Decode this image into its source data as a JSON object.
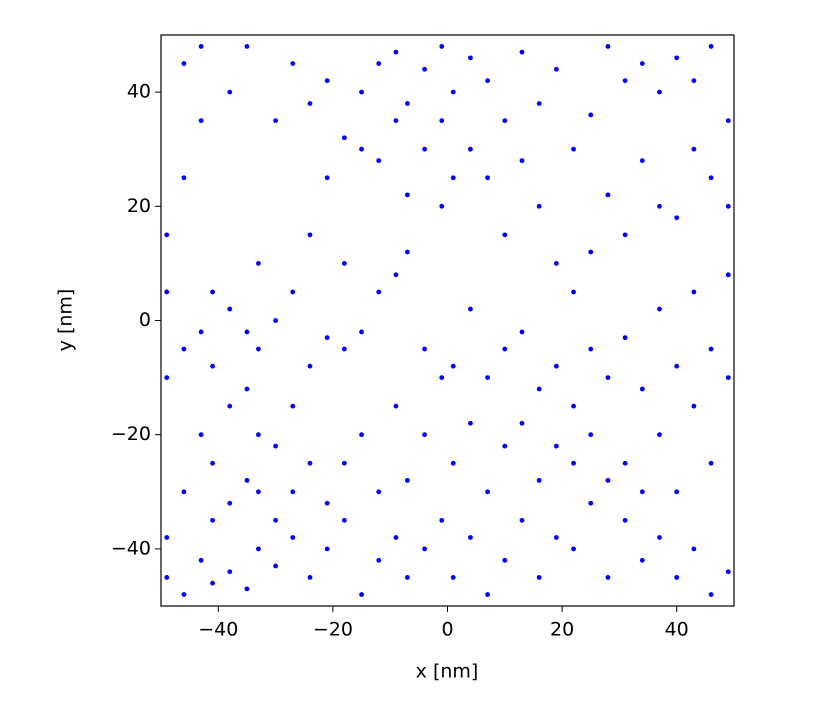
{
  "chart_data": {
    "type": "scatter",
    "xlabel": "x [nm]",
    "ylabel": "y [nm]",
    "xlim": [
      -50,
      50
    ],
    "ylim": [
      -50,
      50
    ],
    "xticks": [
      {
        "value": -40,
        "label": "−40"
      },
      {
        "value": -20,
        "label": "−20"
      },
      0,
      20,
      40
    ],
    "yticks": [
      {
        "value": -40,
        "label": "−40"
      },
      {
        "value": -20,
        "label": "−20"
      },
      0,
      20,
      40
    ],
    "series": [
      {
        "color": "#0000ff",
        "x": [
          -49,
          -49,
          -49,
          -49,
          -49,
          -46,
          -46,
          -46,
          -46,
          -46,
          -43,
          -43,
          -43,
          -43,
          -43,
          -41,
          -41,
          -41,
          -41,
          -41,
          -38,
          -38,
          -38,
          -38,
          -38,
          -35,
          -35,
          -35,
          -35,
          -35,
          -33,
          -33,
          -33,
          -33,
          -33,
          -30,
          -30,
          -30,
          -30,
          -30,
          -27,
          -27,
          -27,
          -27,
          -27,
          -24,
          -24,
          -24,
          -24,
          -24,
          -21,
          -21,
          -21,
          -21,
          -21,
          -18,
          -18,
          -18,
          -18,
          -18,
          -15,
          -15,
          -15,
          -15,
          -15,
          -12,
          -12,
          -12,
          -12,
          -12,
          -9,
          -9,
          -9,
          -9,
          -9,
          -7,
          -7,
          -7,
          -7,
          -7,
          -4,
          -4,
          -4,
          -4,
          -4,
          -1,
          -1,
          -1,
          -1,
          -1,
          1,
          1,
          1,
          1,
          1,
          4,
          4,
          4,
          4,
          4,
          7,
          7,
          7,
          7,
          7,
          10,
          10,
          10,
          10,
          10,
          13,
          13,
          13,
          13,
          13,
          16,
          16,
          16,
          16,
          16,
          19,
          19,
          19,
          19,
          19,
          22,
          22,
          22,
          22,
          22,
          25,
          25,
          25,
          25,
          25,
          28,
          28,
          28,
          28,
          28,
          31,
          31,
          31,
          31,
          31,
          34,
          34,
          34,
          34,
          34,
          37,
          37,
          37,
          37,
          37,
          40,
          40,
          40,
          40,
          40,
          43,
          43,
          43,
          43,
          43,
          46,
          46,
          46,
          46,
          46,
          49,
          49,
          49,
          49,
          49
        ],
        "y": [
          -45,
          -38,
          -10,
          5,
          15,
          -48,
          -30,
          -5,
          25,
          45,
          -42,
          -20,
          -2,
          35,
          48,
          -46,
          -35,
          -25,
          -8,
          5,
          -44,
          -32,
          -15,
          2,
          40,
          -47,
          -28,
          -12,
          -2,
          48,
          -40,
          -30,
          -20,
          -5,
          10,
          -43,
          -35,
          -22,
          0,
          35,
          -38,
          -30,
          -15,
          5,
          45,
          -45,
          -25,
          -8,
          15,
          38,
          -40,
          -32,
          -3,
          25,
          42,
          -35,
          -25,
          -5,
          10,
          32,
          -48,
          -20,
          -2,
          30,
          40,
          -42,
          -30,
          5,
          28,
          45,
          -38,
          -15,
          8,
          35,
          47,
          -45,
          -28,
          12,
          22,
          38,
          -40,
          -20,
          -5,
          30,
          44,
          -35,
          -10,
          20,
          35,
          48,
          -45,
          -25,
          -8,
          25,
          40,
          -38,
          -18,
          2,
          30,
          46,
          -48,
          -30,
          -10,
          25,
          42,
          -42,
          -22,
          -5,
          15,
          35,
          -35,
          -18,
          -2,
          28,
          47,
          -45,
          -28,
          -12,
          20,
          38,
          -38,
          -22,
          -8,
          10,
          44,
          -40,
          -25,
          -15,
          5,
          30,
          -32,
          -20,
          -5,
          12,
          36,
          -45,
          -28,
          -10,
          22,
          48,
          -35,
          -25,
          -3,
          15,
          42,
          -42,
          -30,
          -12,
          28,
          45,
          -38,
          -20,
          2,
          20,
          40,
          -45,
          -30,
          -8,
          18,
          46,
          -40,
          -15,
          5,
          30,
          42,
          -48,
          -25,
          -5,
          25,
          48,
          -44,
          -10,
          8,
          20,
          35
        ]
      }
    ]
  }
}
